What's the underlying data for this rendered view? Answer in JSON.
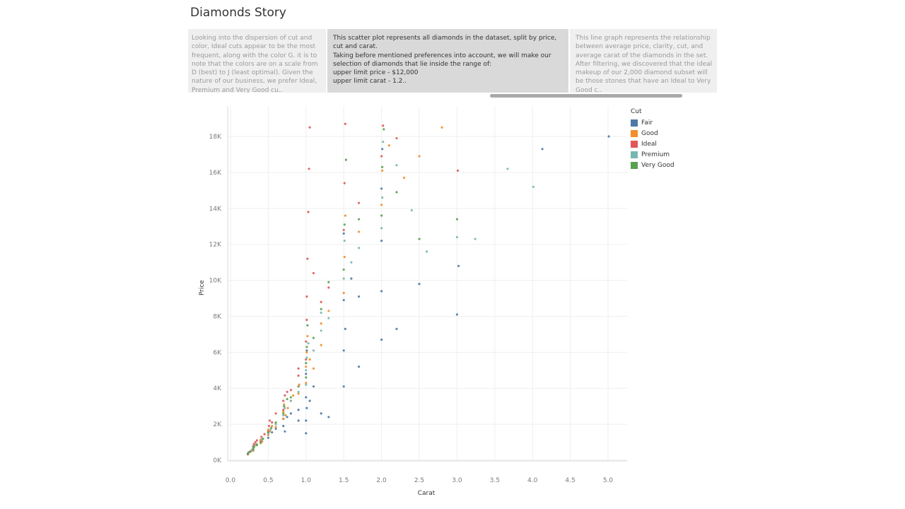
{
  "story": {
    "title": "Diamonds Story",
    "points": [
      {
        "text": "Looking into the dispersion of cut and color, Ideal cuts appear to be the most frequent, along with the color G. it is to note that the colors are on a scale from D (best) to J (least optimal). Given the nature of our business, we prefer Ideal, Premium and Very Good cu.."
      },
      {
        "text": "This scatter plot represents all diamonds in the dataset, split by price, cut and carat.\nTaking before mentioned preferences into account, we will make our selection of diamonds that lie inside the range of:\nupper limit price - $12,000\nupper limit carat - 1.2.."
      },
      {
        "text": "This line graph represents the relationship between average price, clarity, cut, and average carat of the diamonds in the set.\nAfter filtering, we discovered that the ideal makeup of our 2,000 diamond subset will be those stones that have an Ideal to Very Good c.."
      }
    ],
    "active_point": 1
  },
  "chart_data": {
    "type": "scatter",
    "title": "",
    "xlabel": "Carat",
    "ylabel": "Price",
    "xlim": [
      0,
      5.25
    ],
    "ylim": [
      0,
      19000
    ],
    "x_ticks": [
      0.0,
      0.5,
      1.0,
      1.5,
      2.0,
      2.5,
      3.0,
      3.5,
      4.0,
      4.5,
      5.0
    ],
    "x_tick_labels": [
      "0.0",
      "0.5",
      "1.0",
      "1.5",
      "2.0",
      "2.5",
      "3.0",
      "3.5",
      "4.0",
      "4.5",
      "5.0"
    ],
    "y_ticks": [
      0,
      2000,
      4000,
      6000,
      8000,
      10000,
      12000,
      14000,
      16000,
      18000
    ],
    "y_tick_labels": [
      "0K",
      "2K",
      "4K",
      "6K",
      "8K",
      "10K",
      "12K",
      "14K",
      "16K",
      "18K"
    ],
    "grid": true,
    "legend": {
      "title": "Cut",
      "position": "right",
      "entries": [
        "Fair",
        "Good",
        "Ideal",
        "Premium",
        "Very Good"
      ]
    },
    "series": [
      {
        "name": "Fair",
        "color": "#4e79a7",
        "points": [
          [
            0.3,
            540
          ],
          [
            0.5,
            1250
          ],
          [
            0.55,
            1550
          ],
          [
            0.6,
            1750
          ],
          [
            0.7,
            1900
          ],
          [
            0.7,
            2300
          ],
          [
            0.72,
            1600
          ],
          [
            0.75,
            2400
          ],
          [
            0.8,
            2600
          ],
          [
            0.9,
            2800
          ],
          [
            0.9,
            2200
          ],
          [
            1.0,
            3500
          ],
          [
            1.0,
            4800
          ],
          [
            1.0,
            2200
          ],
          [
            1.0,
            1500
          ],
          [
            1.01,
            6100
          ],
          [
            1.01,
            2900
          ],
          [
            1.05,
            3300
          ],
          [
            1.1,
            4100
          ],
          [
            1.2,
            2600
          ],
          [
            1.3,
            2400
          ],
          [
            1.5,
            4100
          ],
          [
            1.5,
            6100
          ],
          [
            1.5,
            8900
          ],
          [
            1.5,
            12600
          ],
          [
            1.52,
            7300
          ],
          [
            1.6,
            10100
          ],
          [
            1.7,
            5200
          ],
          [
            1.7,
            9100
          ],
          [
            2.0,
            6700
          ],
          [
            2.0,
            9400
          ],
          [
            2.0,
            12200
          ],
          [
            2.0,
            15100
          ],
          [
            2.01,
            17300
          ],
          [
            2.2,
            7300
          ],
          [
            2.5,
            9800
          ],
          [
            3.0,
            8100
          ],
          [
            3.02,
            10800
          ],
          [
            4.13,
            17300
          ],
          [
            5.01,
            18000
          ]
        ]
      },
      {
        "name": "Good",
        "color": "#f28e2b",
        "points": [
          [
            0.23,
            330
          ],
          [
            0.25,
            450
          ],
          [
            0.28,
            520
          ],
          [
            0.3,
            560
          ],
          [
            0.3,
            690
          ],
          [
            0.31,
            750
          ],
          [
            0.32,
            810
          ],
          [
            0.35,
            880
          ],
          [
            0.4,
            950
          ],
          [
            0.4,
            1150
          ],
          [
            0.42,
            1040
          ],
          [
            0.5,
            1400
          ],
          [
            0.5,
            1700
          ],
          [
            0.52,
            1600
          ],
          [
            0.55,
            1900
          ],
          [
            0.6,
            1850
          ],
          [
            0.7,
            2300
          ],
          [
            0.7,
            2700
          ],
          [
            0.71,
            3100
          ],
          [
            0.73,
            2500
          ],
          [
            0.76,
            2900
          ],
          [
            0.8,
            3300
          ],
          [
            0.83,
            3600
          ],
          [
            0.9,
            3700
          ],
          [
            0.91,
            4200
          ],
          [
            1.0,
            4300
          ],
          [
            1.0,
            5200
          ],
          [
            1.01,
            6000
          ],
          [
            1.02,
            6900
          ],
          [
            1.05,
            5600
          ],
          [
            1.1,
            5100
          ],
          [
            1.2,
            6400
          ],
          [
            1.2,
            7600
          ],
          [
            1.3,
            8300
          ],
          [
            1.5,
            9300
          ],
          [
            1.51,
            11300
          ],
          [
            1.52,
            13600
          ],
          [
            1.7,
            12700
          ],
          [
            2.0,
            14200
          ],
          [
            2.01,
            16100
          ],
          [
            2.1,
            17500
          ],
          [
            2.3,
            15700
          ],
          [
            2.5,
            16900
          ],
          [
            2.8,
            18500
          ]
        ]
      },
      {
        "name": "Ideal",
        "color": "#e15759",
        "points": [
          [
            0.23,
            340
          ],
          [
            0.24,
            440
          ],
          [
            0.26,
            480
          ],
          [
            0.3,
            600
          ],
          [
            0.3,
            780
          ],
          [
            0.31,
            900
          ],
          [
            0.33,
            1000
          ],
          [
            0.35,
            1100
          ],
          [
            0.4,
            1050
          ],
          [
            0.41,
            1300
          ],
          [
            0.45,
            1450
          ],
          [
            0.5,
            1600
          ],
          [
            0.51,
            1900
          ],
          [
            0.52,
            2200
          ],
          [
            0.55,
            2100
          ],
          [
            0.6,
            2600
          ],
          [
            0.7,
            2800
          ],
          [
            0.7,
            3300
          ],
          [
            0.72,
            3600
          ],
          [
            0.75,
            3800
          ],
          [
            0.8,
            3900
          ],
          [
            0.9,
            4700
          ],
          [
            0.9,
            5100
          ],
          [
            1.0,
            5600
          ],
          [
            1.0,
            6600
          ],
          [
            1.01,
            7800
          ],
          [
            1.01,
            9100
          ],
          [
            1.02,
            11200
          ],
          [
            1.03,
            13800
          ],
          [
            1.04,
            16200
          ],
          [
            1.05,
            18500
          ],
          [
            1.1,
            10400
          ],
          [
            1.2,
            8800
          ],
          [
            1.3,
            9600
          ],
          [
            1.5,
            12800
          ],
          [
            1.51,
            15400
          ],
          [
            1.52,
            18700
          ],
          [
            1.7,
            14300
          ],
          [
            2.0,
            16900
          ],
          [
            2.02,
            18600
          ],
          [
            2.2,
            17900
          ],
          [
            3.01,
            16100
          ]
        ]
      },
      {
        "name": "Premium",
        "color": "#76b7b2",
        "points": [
          [
            0.24,
            420
          ],
          [
            0.28,
            560
          ],
          [
            0.3,
            700
          ],
          [
            0.31,
            780
          ],
          [
            0.34,
            880
          ],
          [
            0.4,
            1000
          ],
          [
            0.42,
            1150
          ],
          [
            0.5,
            1500
          ],
          [
            0.53,
            1700
          ],
          [
            0.6,
            2000
          ],
          [
            0.7,
            2500
          ],
          [
            0.72,
            2900
          ],
          [
            0.8,
            3300
          ],
          [
            0.9,
            3800
          ],
          [
            1.0,
            4200
          ],
          [
            1.0,
            5000
          ],
          [
            1.01,
            5700
          ],
          [
            1.03,
            6500
          ],
          [
            1.1,
            6100
          ],
          [
            1.2,
            7200
          ],
          [
            1.2,
            8200
          ],
          [
            1.3,
            7900
          ],
          [
            1.5,
            10100
          ],
          [
            1.51,
            12200
          ],
          [
            1.6,
            11000
          ],
          [
            1.7,
            11800
          ],
          [
            2.0,
            12900
          ],
          [
            2.01,
            14600
          ],
          [
            2.02,
            17700
          ],
          [
            2.2,
            16400
          ],
          [
            2.4,
            13900
          ],
          [
            2.6,
            11600
          ],
          [
            3.0,
            12400
          ],
          [
            3.24,
            12300
          ],
          [
            3.67,
            16200
          ],
          [
            4.01,
            15200
          ]
        ]
      },
      {
        "name": "Very Good",
        "color": "#59a14f",
        "points": [
          [
            0.23,
            370
          ],
          [
            0.26,
            470
          ],
          [
            0.3,
            620
          ],
          [
            0.31,
            730
          ],
          [
            0.35,
            840
          ],
          [
            0.4,
            990
          ],
          [
            0.43,
            1200
          ],
          [
            0.5,
            1550
          ],
          [
            0.54,
            1800
          ],
          [
            0.6,
            2100
          ],
          [
            0.7,
            2600
          ],
          [
            0.71,
            3000
          ],
          [
            0.75,
            3400
          ],
          [
            0.8,
            3500
          ],
          [
            0.9,
            4100
          ],
          [
            1.0,
            4600
          ],
          [
            1.0,
            5400
          ],
          [
            1.01,
            6300
          ],
          [
            1.02,
            7500
          ],
          [
            1.1,
            6800
          ],
          [
            1.2,
            8400
          ],
          [
            1.3,
            9900
          ],
          [
            1.5,
            10600
          ],
          [
            1.51,
            13100
          ],
          [
            1.53,
            16700
          ],
          [
            1.7,
            13400
          ],
          [
            2.0,
            13600
          ],
          [
            2.01,
            16300
          ],
          [
            2.03,
            18400
          ],
          [
            2.2,
            14900
          ],
          [
            2.5,
            12300
          ],
          [
            3.0,
            13400
          ]
        ]
      }
    ]
  }
}
